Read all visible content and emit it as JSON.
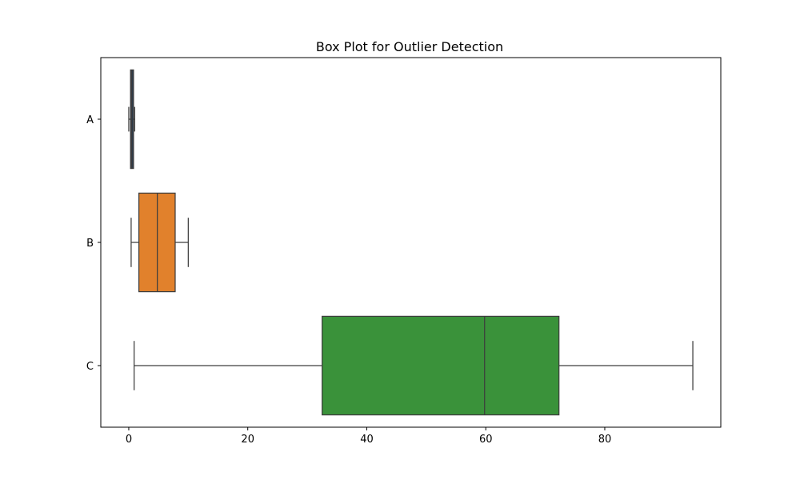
{
  "chart_data": {
    "type": "boxplot",
    "orientation": "horizontal",
    "title": "Box Plot for Outlier Detection",
    "xlabel": "",
    "ylabel": "",
    "xlim": [
      -4.7,
      99.5
    ],
    "x_ticks": [
      0,
      20,
      40,
      60,
      80
    ],
    "categories": [
      "A",
      "B",
      "C"
    ],
    "series": [
      {
        "category": "A",
        "whisker_low": 0.0,
        "q1": 0.3,
        "median": 0.5,
        "q3": 0.8,
        "whisker_high": 1.0,
        "color": "#2a3d4f",
        "box_height_fraction": 0.06
      },
      {
        "category": "B",
        "whisker_low": 0.4,
        "q1": 1.7,
        "median": 4.8,
        "q3": 7.8,
        "whisker_high": 10.0,
        "color": "#e1812c"
      },
      {
        "category": "C",
        "whisker_low": 0.9,
        "q1": 32.5,
        "median": 59.8,
        "q3": 72.3,
        "whisker_high": 94.8,
        "color": "#3a923a"
      }
    ],
    "grid": false,
    "legend": "none"
  }
}
